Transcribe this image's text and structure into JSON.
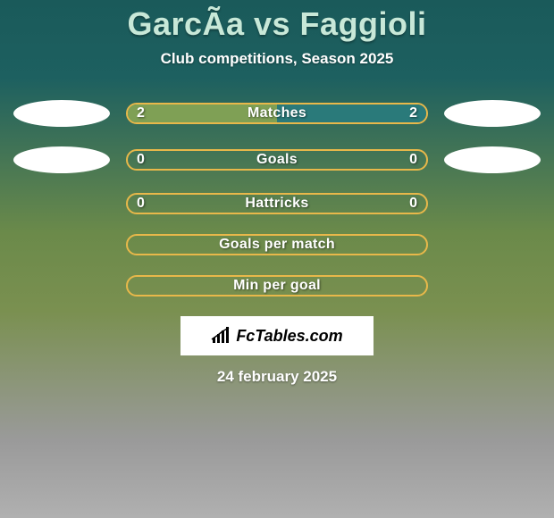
{
  "title": "GarcÃa vs Faggioli",
  "subtitle": "Club competitions, Season 2025",
  "date": "24 february 2025",
  "logo_text": "FcTables.com",
  "colors": {
    "left_fill": "#7fa055",
    "right_fill": "#2a7a7a",
    "border": "#e8b84a",
    "avatar_bg": "#ffffff"
  },
  "rows": [
    {
      "label": "Matches",
      "left_value": "2",
      "right_value": "2",
      "left_pct": 50,
      "right_pct": 50,
      "show_left_avatar": true,
      "show_right_avatar": true,
      "show_values": true
    },
    {
      "label": "Goals",
      "left_value": "0",
      "right_value": "0",
      "left_pct": 0,
      "right_pct": 0,
      "show_left_avatar": true,
      "show_right_avatar": true,
      "show_values": true
    },
    {
      "label": "Hattricks",
      "left_value": "0",
      "right_value": "0",
      "left_pct": 0,
      "right_pct": 0,
      "show_left_avatar": false,
      "show_right_avatar": false,
      "show_values": true
    },
    {
      "label": "Goals per match",
      "left_value": "",
      "right_value": "",
      "left_pct": 0,
      "right_pct": 0,
      "show_left_avatar": false,
      "show_right_avatar": false,
      "show_values": false
    },
    {
      "label": "Min per goal",
      "left_value": "",
      "right_value": "",
      "left_pct": 0,
      "right_pct": 0,
      "show_left_avatar": false,
      "show_right_avatar": false,
      "show_values": false
    }
  ]
}
